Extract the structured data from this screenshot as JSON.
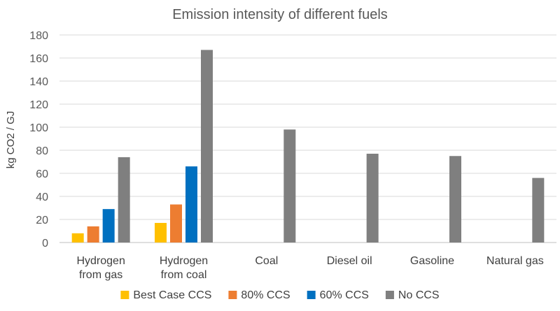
{
  "chart_data": {
    "type": "bar",
    "title": "Emission intensity of different fuels",
    "xlabel": "",
    "ylabel": "kg CO2 / GJ",
    "ylim": [
      0,
      180
    ],
    "yticks": [
      0,
      20,
      40,
      60,
      80,
      100,
      120,
      140,
      160,
      180
    ],
    "grid": true,
    "legend_position": "bottom",
    "categories": [
      [
        "Hydrogen",
        "from gas"
      ],
      [
        "Hydrogen",
        "from coal"
      ],
      [
        "Coal"
      ],
      [
        "Diesel oil"
      ],
      [
        "Gasoline"
      ],
      [
        "Natural gas"
      ]
    ],
    "series": [
      {
        "name": "Best Case CCS",
        "color": "#ffc000",
        "values": [
          8,
          17,
          null,
          null,
          null,
          null
        ]
      },
      {
        "name": "80% CCS",
        "color": "#ed7d31",
        "values": [
          14,
          33,
          null,
          null,
          null,
          null
        ]
      },
      {
        "name": "60% CCS",
        "color": "#0070c0",
        "values": [
          29,
          66,
          null,
          null,
          null,
          null
        ]
      },
      {
        "name": "No CCS",
        "color": "#7f7f7f",
        "values": [
          74,
          167,
          98,
          77,
          75,
          56
        ]
      }
    ]
  }
}
